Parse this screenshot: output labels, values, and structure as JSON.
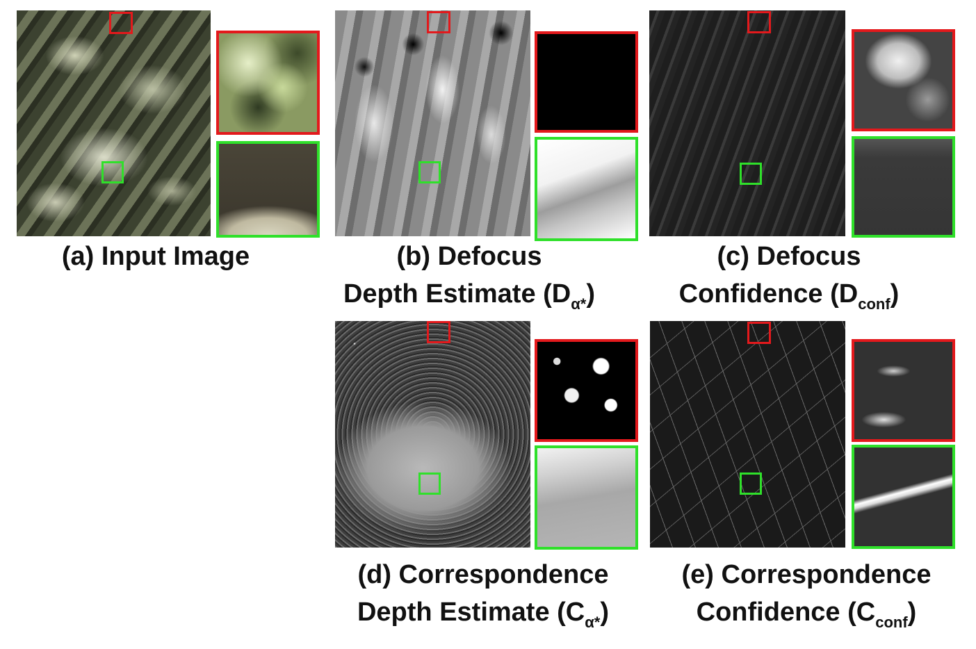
{
  "figure": {
    "panels": [
      {
        "id": "a",
        "caption_line1": "(a) Input Image",
        "caption_line2": "",
        "caption_sub": "",
        "caption_close": ""
      },
      {
        "id": "b",
        "caption_line1": "(b) Defocus",
        "caption_line2": "Depth Estimate (D",
        "caption_sub": "α*",
        "caption_close": ")"
      },
      {
        "id": "c",
        "caption_line1": "(c) Defocus",
        "caption_line2": "Confidence (D",
        "caption_sub": "conf",
        "caption_close": ")"
      },
      {
        "id": "d",
        "caption_line1": "(d) Correspondence",
        "caption_line2": "Depth Estimate (C",
        "caption_sub": "α*",
        "caption_close": ")"
      },
      {
        "id": "e",
        "caption_line1": "(e) Correspondence",
        "caption_line2": "Confidence (C",
        "caption_sub": "conf",
        "caption_close": ")"
      }
    ],
    "colors": {
      "red_box": "#e3191c",
      "green_box": "#2fe02a"
    }
  }
}
